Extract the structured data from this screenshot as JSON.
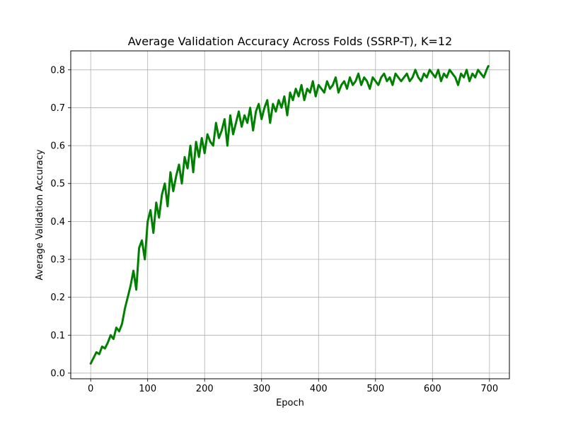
{
  "chart_data": {
    "type": "line",
    "title": "Average Validation Accuracy Across Folds (SSRP-T), K=12",
    "xlabel": "Epoch",
    "ylabel": "Average Validation Accuracy",
    "xlim": [
      -35,
      735
    ],
    "ylim": [
      -0.015,
      0.85
    ],
    "xticks": [
      0,
      100,
      200,
      300,
      400,
      500,
      600,
      700
    ],
    "xtick_labels": [
      "0",
      "100",
      "200",
      "300",
      "400",
      "500",
      "600",
      "700"
    ],
    "yticks": [
      0.0,
      0.1,
      0.2,
      0.3,
      0.4,
      0.5,
      0.6,
      0.7,
      0.8
    ],
    "ytick_labels": [
      "0.0",
      "0.1",
      "0.2",
      "0.3",
      "0.4",
      "0.5",
      "0.6",
      "0.7",
      "0.8"
    ],
    "grid": true,
    "series": [
      {
        "color": "#008000",
        "x": [
          0,
          5,
          10,
          15,
          20,
          25,
          30,
          35,
          40,
          45,
          50,
          55,
          60,
          65,
          70,
          75,
          80,
          85,
          90,
          95,
          100,
          105,
          110,
          115,
          120,
          125,
          130,
          135,
          140,
          145,
          150,
          155,
          160,
          165,
          170,
          175,
          180,
          185,
          190,
          195,
          200,
          205,
          210,
          215,
          220,
          225,
          230,
          235,
          240,
          245,
          250,
          255,
          260,
          265,
          270,
          275,
          280,
          285,
          290,
          295,
          300,
          305,
          310,
          315,
          320,
          325,
          330,
          335,
          340,
          345,
          350,
          355,
          360,
          365,
          370,
          375,
          380,
          385,
          390,
          395,
          400,
          405,
          410,
          415,
          420,
          425,
          430,
          435,
          440,
          445,
          450,
          455,
          460,
          465,
          470,
          475,
          480,
          485,
          490,
          495,
          500,
          505,
          510,
          515,
          520,
          525,
          530,
          535,
          540,
          545,
          550,
          555,
          560,
          565,
          570,
          575,
          580,
          585,
          590,
          595,
          600,
          605,
          610,
          615,
          620,
          625,
          630,
          635,
          640,
          645,
          650,
          655,
          660,
          665,
          670,
          675,
          680,
          685,
          690,
          695,
          698
        ],
        "y": [
          0.025,
          0.04,
          0.055,
          0.05,
          0.07,
          0.065,
          0.08,
          0.1,
          0.09,
          0.12,
          0.11,
          0.13,
          0.17,
          0.2,
          0.23,
          0.27,
          0.22,
          0.33,
          0.35,
          0.3,
          0.4,
          0.43,
          0.37,
          0.45,
          0.41,
          0.47,
          0.5,
          0.44,
          0.53,
          0.48,
          0.52,
          0.55,
          0.5,
          0.57,
          0.54,
          0.6,
          0.53,
          0.61,
          0.57,
          0.62,
          0.58,
          0.63,
          0.61,
          0.6,
          0.66,
          0.62,
          0.64,
          0.67,
          0.6,
          0.68,
          0.63,
          0.66,
          0.69,
          0.65,
          0.68,
          0.66,
          0.7,
          0.64,
          0.69,
          0.71,
          0.67,
          0.7,
          0.72,
          0.66,
          0.71,
          0.69,
          0.72,
          0.7,
          0.73,
          0.68,
          0.74,
          0.72,
          0.75,
          0.73,
          0.76,
          0.72,
          0.75,
          0.74,
          0.77,
          0.73,
          0.76,
          0.75,
          0.74,
          0.77,
          0.75,
          0.76,
          0.78,
          0.74,
          0.76,
          0.77,
          0.75,
          0.78,
          0.76,
          0.77,
          0.79,
          0.76,
          0.78,
          0.77,
          0.75,
          0.78,
          0.77,
          0.76,
          0.78,
          0.79,
          0.77,
          0.78,
          0.76,
          0.79,
          0.78,
          0.77,
          0.78,
          0.79,
          0.77,
          0.78,
          0.8,
          0.78,
          0.77,
          0.79,
          0.78,
          0.8,
          0.79,
          0.78,
          0.8,
          0.77,
          0.79,
          0.78,
          0.8,
          0.79,
          0.78,
          0.76,
          0.79,
          0.78,
          0.8,
          0.77,
          0.79,
          0.78,
          0.8,
          0.79,
          0.78,
          0.8,
          0.81
        ]
      }
    ]
  }
}
